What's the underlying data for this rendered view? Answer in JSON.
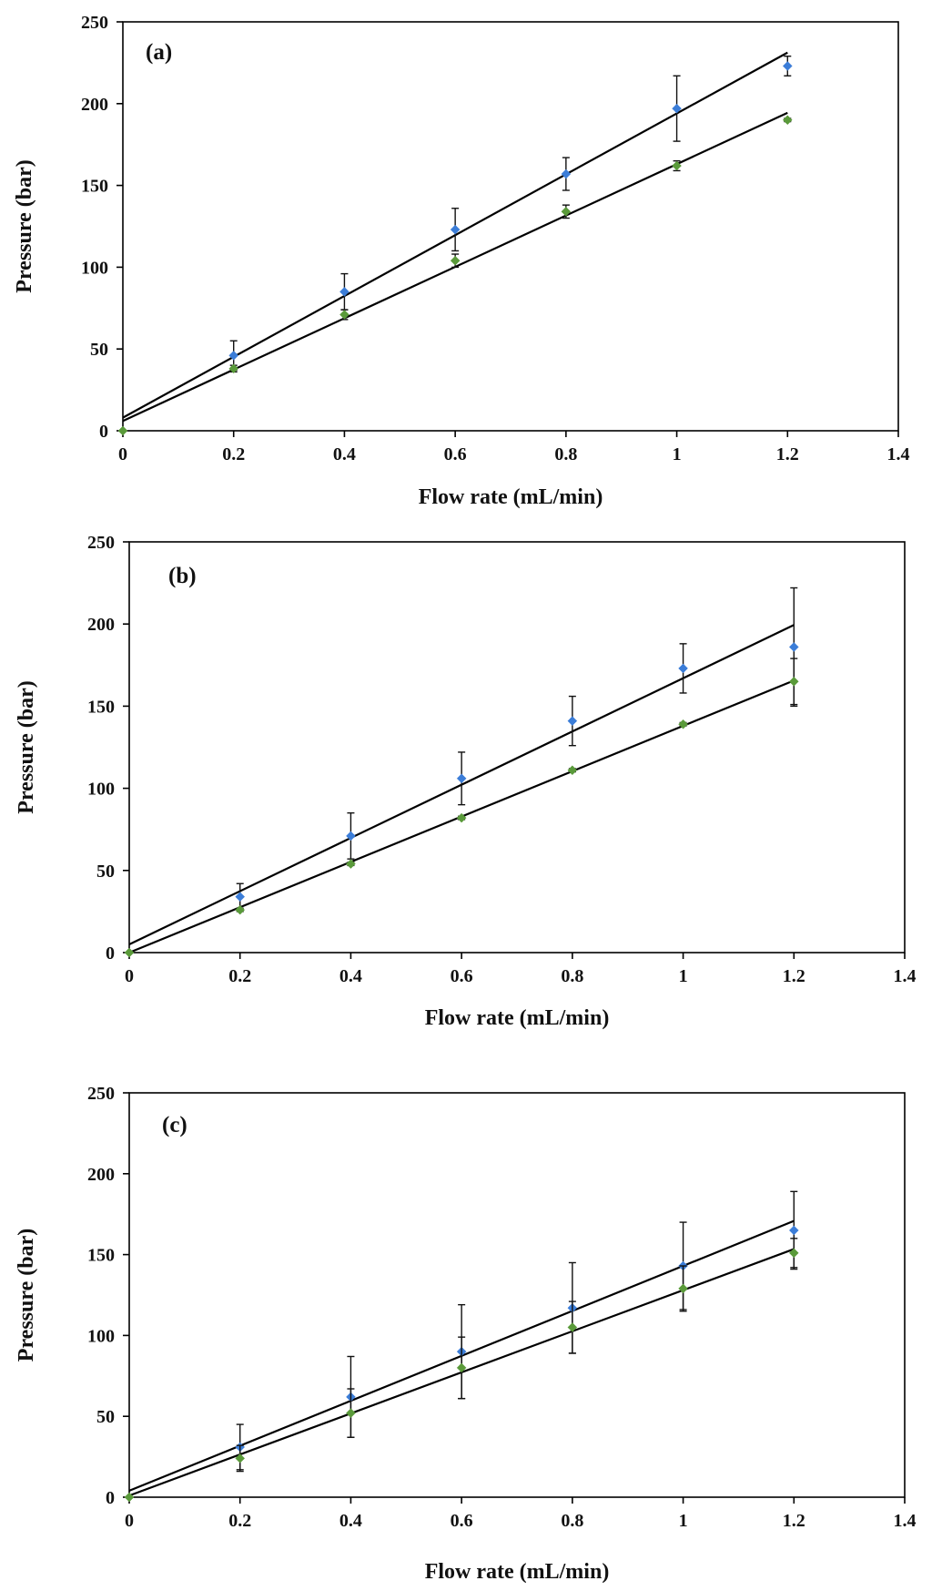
{
  "chart_data": [
    {
      "type": "scatter",
      "panel_label": "(a)",
      "xlabel": "Flow rate (mL/min)",
      "ylabel": "Pressure (bar)",
      "xlim": [
        0,
        1.4
      ],
      "ylim": [
        0,
        250
      ],
      "xticks": [
        0,
        0.2,
        0.4,
        0.6,
        0.8,
        1,
        1.2,
        1.4
      ],
      "xtick_labels": [
        "0",
        "0.2",
        "0.4",
        "0.6",
        "0.8",
        "1",
        "1.2",
        "1.4"
      ],
      "yticks": [
        0,
        50,
        100,
        150,
        200,
        250
      ],
      "ytick_labels": [
        "0",
        "50",
        "100",
        "150",
        "200",
        "250"
      ],
      "grid": false,
      "series": [
        {
          "name": "blue series",
          "color": "#3b7dd8",
          "x": [
            0,
            0.2,
            0.4,
            0.6,
            0.8,
            1.0,
            1.2
          ],
          "y": [
            0,
            46,
            85,
            123,
            157,
            197,
            223
          ],
          "err": [
            0,
            9,
            11,
            13,
            10,
            20,
            6
          ],
          "fit": {
            "slope": 186,
            "intercept": 8
          }
        },
        {
          "name": "green series",
          "color": "#5a9a3a",
          "x": [
            0,
            0.2,
            0.4,
            0.6,
            0.8,
            1.0,
            1.2
          ],
          "y": [
            0,
            38,
            71,
            104,
            134,
            162,
            190
          ],
          "err": [
            0,
            2,
            3,
            4,
            4,
            3,
            1
          ],
          "fit": {
            "slope": 157,
            "intercept": 6
          }
        }
      ]
    },
    {
      "type": "scatter",
      "panel_label": "(b)",
      "xlabel": "Flow rate (mL/min)",
      "ylabel": "Pressure (bar)",
      "xlim": [
        0,
        1.4
      ],
      "ylim": [
        0,
        250
      ],
      "xticks": [
        0,
        0.2,
        0.4,
        0.6,
        0.8,
        1,
        1.2,
        1.4
      ],
      "xtick_labels": [
        "0",
        "0.2",
        "0.4",
        "0.6",
        "0.8",
        "1",
        "1.2",
        "1.4"
      ],
      "yticks": [
        0,
        50,
        100,
        150,
        200,
        250
      ],
      "ytick_labels": [
        "0",
        "50",
        "100",
        "150",
        "200",
        "250"
      ],
      "grid": false,
      "series": [
        {
          "name": "blue series",
          "color": "#3b7dd8",
          "x": [
            0,
            0.2,
            0.4,
            0.6,
            0.8,
            1.0,
            1.2
          ],
          "y": [
            0,
            34,
            71,
            106,
            141,
            173,
            186
          ],
          "err": [
            0,
            8,
            14,
            16,
            15,
            15,
            36
          ],
          "fit": {
            "slope": 162,
            "intercept": 5
          }
        },
        {
          "name": "green series",
          "color": "#5a9a3a",
          "x": [
            0,
            0.2,
            0.4,
            0.6,
            0.8,
            1.0,
            1.2
          ],
          "y": [
            0,
            26,
            54,
            82,
            111,
            139,
            165
          ],
          "err": [
            0,
            1,
            1,
            1,
            1,
            1,
            14
          ],
          "fit": {
            "slope": 138,
            "intercept": 0
          }
        }
      ]
    },
    {
      "type": "scatter",
      "panel_label": "(c)",
      "xlabel": "Flow rate (mL/min)",
      "ylabel": "Pressure (bar)",
      "xlim": [
        0,
        1.4
      ],
      "ylim": [
        0,
        250
      ],
      "xticks": [
        0,
        0.2,
        0.4,
        0.6,
        0.8,
        1,
        1.2,
        1.4
      ],
      "xtick_labels": [
        "0",
        "0.2",
        "0.4",
        "0.6",
        "0.8",
        "1",
        "1.2",
        "1.4"
      ],
      "yticks": [
        0,
        50,
        100,
        150,
        200,
        250
      ],
      "ytick_labels": [
        "0",
        "50",
        "100",
        "150",
        "200",
        "250"
      ],
      "grid": false,
      "series": [
        {
          "name": "blue series",
          "color": "#3b7dd8",
          "x": [
            0,
            0.2,
            0.4,
            0.6,
            0.8,
            1.0,
            1.2
          ],
          "y": [
            0,
            31,
            62,
            90,
            117,
            143,
            165
          ],
          "err": [
            0,
            14,
            25,
            29,
            28,
            27,
            24
          ],
          "fit": {
            "slope": 139,
            "intercept": 4
          }
        },
        {
          "name": "green series",
          "color": "#5a9a3a",
          "x": [
            0,
            0.2,
            0.4,
            0.6,
            0.8,
            1.0,
            1.2
          ],
          "y": [
            0,
            24,
            52,
            80,
            105,
            129,
            151
          ],
          "err": [
            0,
            8,
            15,
            19,
            16,
            14,
            9
          ],
          "fit": {
            "slope": 127,
            "intercept": 1
          }
        }
      ]
    }
  ]
}
